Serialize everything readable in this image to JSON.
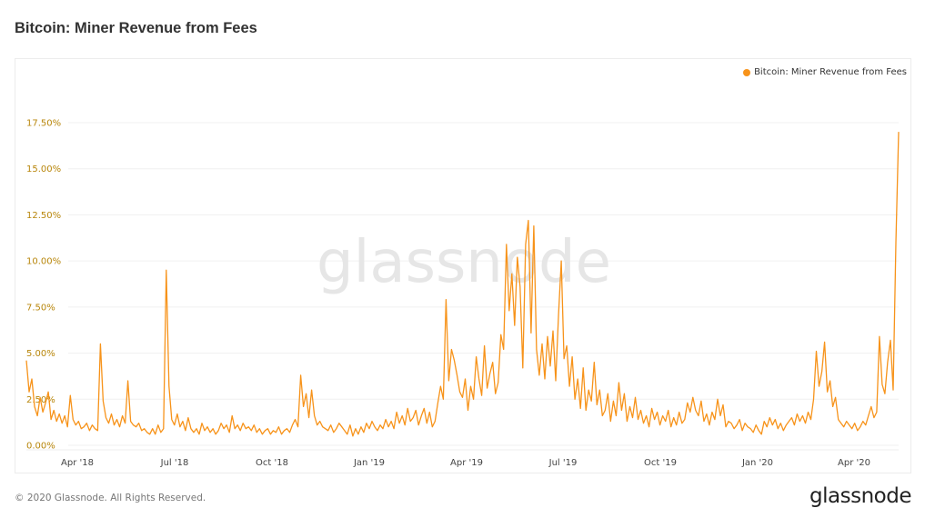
{
  "header": {
    "title": "Bitcoin: Miner Revenue from Fees"
  },
  "legend": {
    "label": "Bitcoin: Miner Revenue from Fees",
    "color": "#f7931a"
  },
  "watermark": "glassnode",
  "footer": {
    "copyright": "© 2020 Glassnode. All Rights Reserved.",
    "logo": "glassnode"
  },
  "colors": {
    "line": "#f7931a",
    "ytick": "#b8860b",
    "grid": "#f0f0f0",
    "xtick": "#444444"
  },
  "chart_data": {
    "type": "line",
    "title": "Bitcoin: Miner Revenue from Fees",
    "xlabel": "",
    "ylabel": "",
    "ylim": [
      0,
      17.5
    ],
    "y_ticks": [
      "0.00%",
      "2.50%",
      "5.00%",
      "7.50%",
      "10.00%",
      "12.50%",
      "15.00%",
      "17.50%"
    ],
    "x_ticks": [
      "Apr '18",
      "Jul '18",
      "Oct '18",
      "Jan '19",
      "Apr '19",
      "Jul '19",
      "Oct '19",
      "Jan '20",
      "Apr '20"
    ],
    "grid": true,
    "legend_position": "top-right",
    "series": [
      {
        "name": "Bitcoin: Miner Revenue from Fees",
        "unit": "%",
        "x_start": "2018-02-10",
        "x_step_days": 3,
        "values": [
          4.6,
          2.9,
          3.6,
          2.1,
          1.6,
          2.6,
          1.8,
          2.3,
          2.9,
          1.4,
          1.9,
          1.3,
          1.7,
          1.2,
          1.6,
          1.0,
          2.7,
          1.4,
          1.1,
          1.3,
          0.9,
          1.0,
          1.2,
          0.8,
          1.1,
          0.9,
          0.8,
          5.5,
          2.4,
          1.5,
          1.2,
          1.7,
          1.1,
          1.4,
          1.0,
          1.6,
          1.2,
          3.5,
          1.3,
          1.1,
          1.0,
          1.2,
          0.8,
          0.9,
          0.7,
          0.6,
          0.9,
          0.6,
          1.1,
          0.7,
          0.9,
          9.5,
          3.2,
          1.4,
          1.1,
          1.7,
          1.0,
          1.3,
          0.8,
          1.5,
          0.9,
          0.7,
          0.9,
          0.6,
          1.2,
          0.8,
          1.0,
          0.7,
          0.9,
          0.6,
          0.8,
          1.2,
          0.9,
          1.1,
          0.7,
          1.6,
          0.9,
          1.1,
          0.8,
          1.2,
          0.9,
          1.0,
          0.8,
          1.1,
          0.7,
          0.9,
          0.6,
          0.8,
          0.9,
          0.6,
          0.8,
          0.7,
          1.0,
          0.6,
          0.8,
          0.9,
          0.7,
          1.1,
          1.4,
          1.0,
          3.8,
          2.1,
          2.8,
          1.5,
          3.0,
          1.6,
          1.1,
          1.3,
          1.0,
          0.9,
          0.8,
          1.1,
          0.7,
          0.9,
          1.2,
          1.0,
          0.8,
          0.6,
          1.1,
          0.5,
          0.9,
          0.6,
          1.0,
          0.7,
          1.2,
          0.9,
          1.3,
          1.0,
          0.8,
          1.1,
          0.9,
          1.4,
          1.0,
          1.3,
          0.9,
          1.8,
          1.2,
          1.6,
          1.1,
          2.0,
          1.3,
          1.5,
          1.9,
          1.1,
          1.6,
          2.0,
          1.2,
          1.8,
          1.0,
          1.3,
          2.3,
          3.2,
          2.5,
          7.9,
          3.5,
          5.2,
          4.6,
          3.8,
          2.9,
          2.6,
          3.6,
          1.9,
          3.2,
          2.5,
          4.8,
          3.6,
          2.7,
          5.4,
          3.1,
          3.9,
          4.5,
          2.8,
          3.4,
          6.0,
          5.2,
          10.9,
          7.3,
          9.3,
          6.5,
          10.2,
          8.6,
          4.2,
          10.9,
          12.2,
          6.1,
          11.9,
          5.2,
          3.8,
          5.5,
          3.6,
          5.9,
          4.3,
          6.2,
          3.5,
          7.1,
          10.0,
          4.7,
          5.4,
          3.2,
          4.8,
          2.5,
          3.6,
          2.0,
          4.2,
          1.9,
          3.0,
          2.4,
          4.5,
          2.2,
          3.0,
          1.6,
          1.9,
          2.8,
          1.3,
          2.4,
          1.6,
          3.4,
          1.9,
          2.8,
          1.3,
          2.1,
          1.5,
          2.6,
          1.4,
          1.9,
          1.2,
          1.6,
          1.0,
          2.0,
          1.4,
          1.8,
          1.1,
          1.6,
          1.3,
          1.9,
          1.0,
          1.5,
          1.1,
          1.8,
          1.2,
          1.4,
          2.3,
          1.8,
          2.6,
          1.9,
          1.6,
          2.4,
          1.3,
          1.7,
          1.1,
          1.8,
          1.4,
          2.5,
          1.6,
          2.2,
          1.0,
          1.3,
          1.2,
          0.9,
          1.1,
          1.4,
          0.8,
          1.2,
          1.0,
          0.9,
          0.7,
          1.1,
          0.8,
          0.6,
          1.3,
          1.0,
          1.5,
          1.1,
          1.4,
          0.9,
          1.2,
          0.8,
          1.1,
          1.3,
          1.5,
          1.1,
          1.7,
          1.3,
          1.6,
          1.2,
          1.8,
          1.4,
          2.5,
          5.1,
          3.2,
          4.0,
          5.6,
          2.9,
          3.5,
          2.1,
          2.6,
          1.4,
          1.2,
          1.0,
          1.3,
          1.1,
          0.9,
          1.2,
          0.8,
          1.0,
          1.3,
          1.1,
          1.6,
          2.1,
          1.5,
          1.8,
          5.9,
          3.3,
          2.8,
          4.5,
          5.7,
          3.0,
          11.0,
          17.0
        ]
      }
    ]
  }
}
